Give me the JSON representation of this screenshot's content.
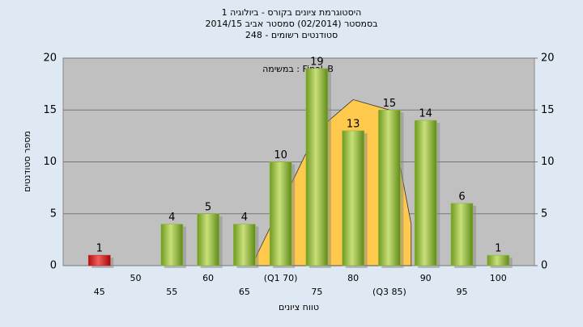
{
  "chart_data": {
    "type": "bar",
    "title": [
      "היסטוגרמת ציונים בקורס - ביולוגיה 1",
      "בסמסטר  (02/2014)  סמסטר אביב 2014/15",
      "סטודנטים רשומים - 248"
    ],
    "annotation": "במשימה : Final_B",
    "xlabel": "טווח ציונים",
    "ylabel": "מספר סטודנטים",
    "xticks": [
      {
        "value": 45,
        "label": "45"
      },
      {
        "value": 50,
        "label": "50"
      },
      {
        "value": 55,
        "label": "55"
      },
      {
        "value": 60,
        "label": "60"
      },
      {
        "value": 65,
        "label": "65"
      },
      {
        "value": 70,
        "label": "(Q1 70)"
      },
      {
        "value": 75,
        "label": "75"
      },
      {
        "value": 80,
        "label": "80"
      },
      {
        "value": 85,
        "label": "(Q3 85)"
      },
      {
        "value": 90,
        "label": "90"
      },
      {
        "value": 95,
        "label": "95"
      },
      {
        "value": 100,
        "label": "100"
      }
    ],
    "values": [
      1,
      0,
      4,
      5,
      4,
      10,
      19,
      13,
      15,
      14,
      6,
      1
    ],
    "colors": [
      "#d82020",
      "#8fb83a",
      "#8fb83a",
      "#8fb83a",
      "#8fb83a",
      "#8fb83a",
      "#8fb83a",
      "#8fb83a",
      "#8fb83a",
      "#8fb83a",
      "#8fb83a",
      "#8fb83a"
    ],
    "area": {
      "x": [
        66,
        75,
        80,
        85,
        88
      ],
      "values": [
        0,
        13,
        16,
        15,
        4
      ],
      "color": "#ffc94d"
    },
    "xlim": [
      40,
      105
    ],
    "ylim": [
      0,
      20
    ],
    "yticks": [
      0,
      5,
      10,
      15,
      20
    ],
    "y2lim": [
      0,
      20
    ],
    "y2ticks": [
      0,
      5,
      10,
      15,
      20
    ],
    "grid": true
  }
}
